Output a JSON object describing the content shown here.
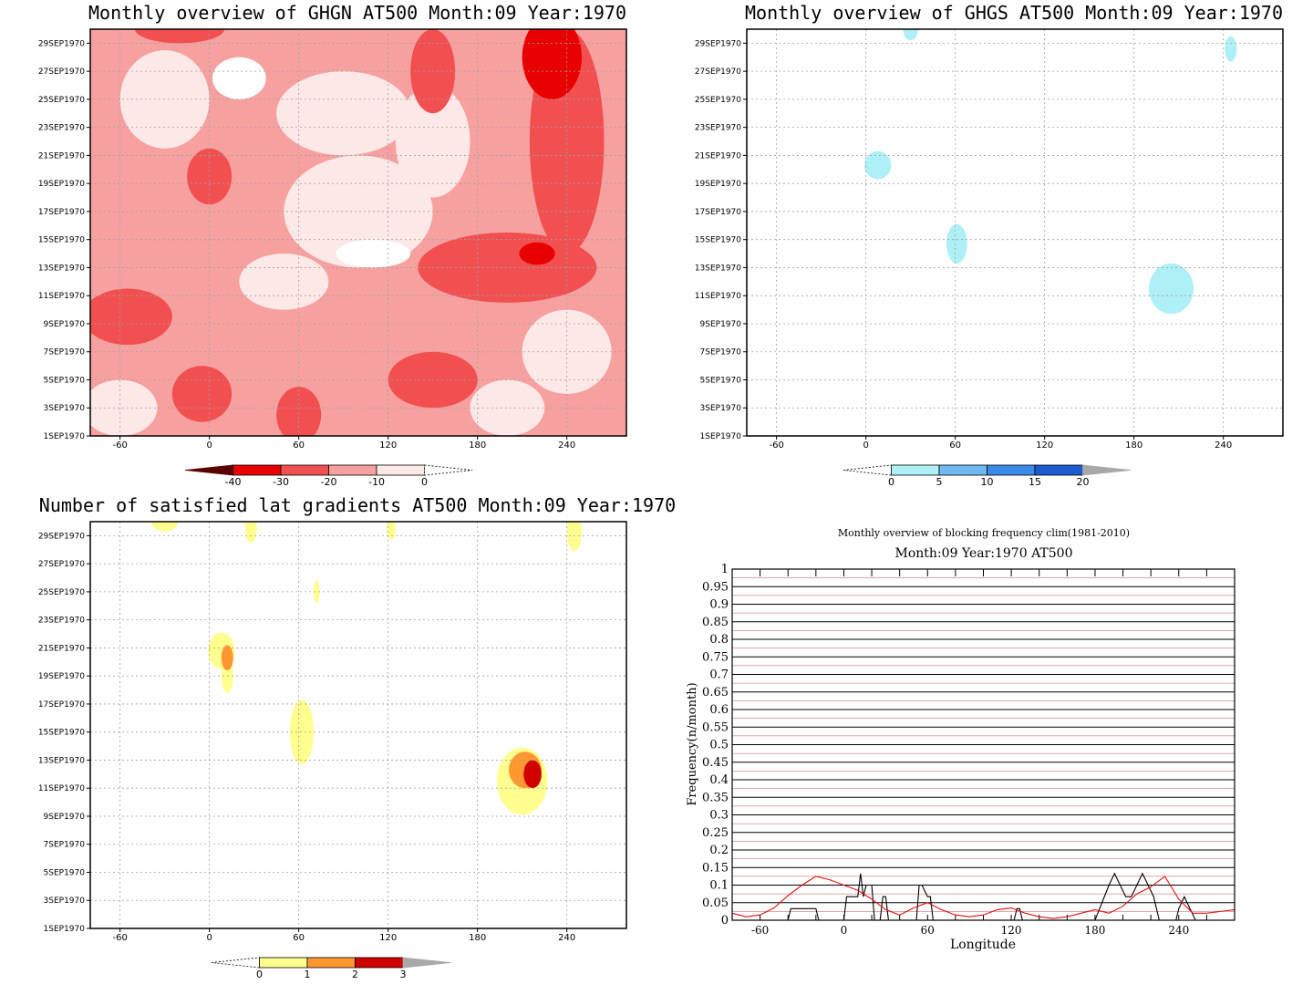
{
  "chart_data": [
    {
      "type": "heatmap",
      "title": "Monthly overview of GHGN AT500 Month:09 Year:1970",
      "x_ticks": [
        "-60",
        "0",
        "60",
        "120",
        "180",
        "240"
      ],
      "x_tick_values": [
        -60,
        0,
        60,
        120,
        180,
        240
      ],
      "xlim": [
        -80,
        280
      ],
      "y_ticks": [
        "1SEP1970",
        "3SEP1970",
        "5SEP1970",
        "7SEP1970",
        "9SEP1970",
        "11SEP1970",
        "13SEP1970",
        "15SEP1970",
        "17SEP1970",
        "19SEP1970",
        "21SEP1970",
        "23SEP1970",
        "25SEP1970",
        "27SEP1970",
        "29SEP1970"
      ],
      "y_tick_values": [
        1,
        3,
        5,
        7,
        9,
        11,
        13,
        15,
        17,
        19,
        21,
        23,
        25,
        27,
        29
      ],
      "ylim": [
        1,
        30
      ],
      "colorbar": {
        "labels": [
          "-40",
          "-30",
          "-20",
          "-10",
          "0"
        ],
        "colors": [
          "#5a0000",
          "#e80000",
          "#f25050",
          "#f7a0a0",
          "#fde8e8",
          "#ffffff"
        ]
      },
      "background_level": "#f7a0a0",
      "blobs": [
        {
          "lon": -30,
          "day": 25,
          "rx": 30,
          "ry": 3.5,
          "color": "#fde8e8"
        },
        {
          "lon": 20,
          "day": 26.5,
          "rx": 18,
          "ry": 1.5,
          "color": "#ffffff"
        },
        {
          "lon": 90,
          "day": 24,
          "rx": 45,
          "ry": 3,
          "color": "#fde8e8"
        },
        {
          "lon": 150,
          "day": 22,
          "rx": 25,
          "ry": 4,
          "color": "#fde8e8"
        },
        {
          "lon": 100,
          "day": 17,
          "rx": 50,
          "ry": 4,
          "color": "#fde8e8"
        },
        {
          "lon": 110,
          "day": 14,
          "rx": 25,
          "ry": 1,
          "color": "#ffffff"
        },
        {
          "lon": 0,
          "day": 19.5,
          "rx": 15,
          "ry": 2,
          "color": "#f25050"
        },
        {
          "lon": 240,
          "day": 22,
          "rx": 25,
          "ry": 8,
          "color": "#f25050"
        },
        {
          "lon": 200,
          "day": 13,
          "rx": 60,
          "ry": 2.5,
          "color": "#f25050"
        },
        {
          "lon": 220,
          "day": 14,
          "rx": 12,
          "ry": 0.8,
          "color": "#e80000"
        },
        {
          "lon": -55,
          "day": 9.5,
          "rx": 30,
          "ry": 2,
          "color": "#f25050"
        },
        {
          "lon": -5,
          "day": 4,
          "rx": 20,
          "ry": 2,
          "color": "#f25050"
        },
        {
          "lon": 60,
          "day": 2.5,
          "rx": 15,
          "ry": 2,
          "color": "#f25050"
        },
        {
          "lon": 150,
          "day": 5,
          "rx": 30,
          "ry": 2,
          "color": "#f25050"
        },
        {
          "lon": 240,
          "day": 7,
          "rx": 30,
          "ry": 3,
          "color": "#fde8e8"
        },
        {
          "lon": 200,
          "day": 3,
          "rx": 25,
          "ry": 2,
          "color": "#fde8e8"
        },
        {
          "lon": -60,
          "day": 3,
          "rx": 25,
          "ry": 2,
          "color": "#fde8e8"
        },
        {
          "lon": 50,
          "day": 12,
          "rx": 30,
          "ry": 2,
          "color": "#fde8e8"
        },
        {
          "lon": -20,
          "day": 30,
          "rx": 30,
          "ry": 1,
          "color": "#f25050"
        },
        {
          "lon": 150,
          "day": 27,
          "rx": 15,
          "ry": 3,
          "color": "#f25050"
        },
        {
          "lon": 230,
          "day": 28,
          "rx": 20,
          "ry": 3,
          "color": "#e80000"
        }
      ]
    },
    {
      "type": "heatmap",
      "title": "Monthly overview of GHGS AT500 Month:09 Year:1970",
      "x_ticks": [
        "-60",
        "0",
        "60",
        "120",
        "180",
        "240"
      ],
      "x_tick_values": [
        -60,
        0,
        60,
        120,
        180,
        240
      ],
      "xlim": [
        -80,
        280
      ],
      "y_ticks": [
        "1SEP1970",
        "3SEP1970",
        "5SEP1970",
        "7SEP1970",
        "9SEP1970",
        "11SEP1970",
        "13SEP1970",
        "15SEP1970",
        "17SEP1970",
        "19SEP1970",
        "21SEP1970",
        "23SEP1970",
        "25SEP1970",
        "27SEP1970",
        "29SEP1970"
      ],
      "y_tick_values": [
        1,
        3,
        5,
        7,
        9,
        11,
        13,
        15,
        17,
        19,
        21,
        23,
        25,
        27,
        29
      ],
      "ylim": [
        1,
        30
      ],
      "colorbar": {
        "labels": [
          "0",
          "5",
          "10",
          "15",
          "20"
        ],
        "colors": [
          "#ffffff",
          "#aef0f6",
          "#6fb8f0",
          "#3a8ae8",
          "#1c5cd0",
          "#a8a8a8"
        ]
      },
      "blobs": [
        {
          "lon": 8,
          "day": 20.3,
          "rx": 9,
          "ry": 1,
          "color": "#aef0f6"
        },
        {
          "lon": 61,
          "day": 14.7,
          "rx": 7,
          "ry": 1.4,
          "color": "#aef0f6"
        },
        {
          "lon": 205,
          "day": 11.5,
          "rx": 15,
          "ry": 1.8,
          "color": "#aef0f6"
        },
        {
          "lon": 245,
          "day": 28.6,
          "rx": 4,
          "ry": 0.9,
          "color": "#aef0f6"
        },
        {
          "lon": 30,
          "day": 30,
          "rx": 5,
          "ry": 0.8,
          "color": "#aef0f6"
        }
      ]
    },
    {
      "type": "heatmap",
      "title": "Number of satisfied lat gradients AT500 Month:09 Year:1970",
      "x_ticks": [
        "-60",
        "0",
        "60",
        "120",
        "180",
        "240"
      ],
      "x_tick_values": [
        -60,
        0,
        60,
        120,
        180,
        240
      ],
      "xlim": [
        -80,
        280
      ],
      "y_ticks": [
        "1SEP1970",
        "3SEP1970",
        "5SEP1970",
        "7SEP1970",
        "9SEP1970",
        "11SEP1970",
        "13SEP1970",
        "15SEP1970",
        "17SEP1970",
        "19SEP1970",
        "21SEP1970",
        "23SEP1970",
        "25SEP1970",
        "27SEP1970",
        "29SEP1970"
      ],
      "y_tick_values": [
        1,
        3,
        5,
        7,
        9,
        11,
        13,
        15,
        17,
        19,
        21,
        23,
        25,
        27,
        29
      ],
      "ylim": [
        1,
        30
      ],
      "colorbar": {
        "labels": [
          "0",
          "1",
          "2",
          "3"
        ],
        "colors": [
          "#ffffff",
          "#ffff90",
          "#ff9830",
          "#d00000",
          "#a8a8a8"
        ]
      },
      "blobs": [
        {
          "lon": 8,
          "day": 20.8,
          "rx": 9,
          "ry": 1.3,
          "color": "#ffff90"
        },
        {
          "lon": 12,
          "day": 19,
          "rx": 4,
          "ry": 1.2,
          "color": "#ffff90"
        },
        {
          "lon": 62,
          "day": 15,
          "rx": 8,
          "ry": 2.3,
          "color": "#ffff90"
        },
        {
          "lon": 210,
          "day": 11.5,
          "rx": 17,
          "ry": 2.4,
          "color": "#ffff90"
        },
        {
          "lon": 212,
          "day": 12.3,
          "rx": 11,
          "ry": 1.3,
          "color": "#ff9830"
        },
        {
          "lon": 12,
          "day": 20.3,
          "rx": 4,
          "ry": 0.9,
          "color": "#ff9830"
        },
        {
          "lon": 217,
          "day": 12,
          "rx": 6,
          "ry": 1,
          "color": "#d00000"
        },
        {
          "lon": -30,
          "day": 30,
          "rx": 9,
          "ry": 0.7,
          "color": "#ffff90"
        },
        {
          "lon": 28,
          "day": 29.5,
          "rx": 4,
          "ry": 1,
          "color": "#ffff90"
        },
        {
          "lon": 72,
          "day": 25,
          "rx": 2,
          "ry": 0.8,
          "color": "#ffff90"
        },
        {
          "lon": 122,
          "day": 29.5,
          "rx": 3,
          "ry": 0.8,
          "color": "#ffff90"
        },
        {
          "lon": 245,
          "day": 29.3,
          "rx": 5,
          "ry": 1.4,
          "color": "#ffff90"
        }
      ]
    },
    {
      "type": "line",
      "title": "Monthly overview of blocking frequency clim(1981-2010)",
      "subtitle": "Month:09 Year:1970  AT500",
      "xlabel": "Longitude",
      "ylabel": "Frequency(n/month)",
      "x_ticks": [
        "-60",
        "0",
        "60",
        "120",
        "180",
        "240"
      ],
      "x_tick_values": [
        -60,
        0,
        60,
        120,
        180,
        240
      ],
      "xlim": [
        -80,
        280
      ],
      "y_ticks": [
        "0",
        "0.05",
        "0.1",
        "0.15",
        "0.2",
        "0.25",
        "0.3",
        "0.35",
        "0.4",
        "0.45",
        "0.5",
        "0.55",
        "0.6",
        "0.65",
        "0.7",
        "0.75",
        "0.8",
        "0.85",
        "0.9",
        "0.95",
        "1"
      ],
      "ylim": [
        0,
        1
      ],
      "series": [
        {
          "color": "#000000",
          "x": [
            -80,
            -40,
            -38,
            -20,
            -18,
            0,
            2,
            10,
            12,
            14,
            16,
            20,
            22,
            26,
            28,
            30,
            32,
            52,
            54,
            56,
            60,
            62,
            64,
            122,
            124,
            126,
            128,
            176,
            180,
            190,
            194,
            198,
            202,
            206,
            210,
            214,
            218,
            222,
            226,
            230,
            234,
            238,
            240,
            244,
            248,
            252,
            256,
            280
          ],
          "y": [
            0,
            0,
            0.033,
            0.033,
            0,
            0,
            0.067,
            0.067,
            0.133,
            0.067,
            0.1,
            0.1,
            0,
            0,
            0.067,
            0.067,
            0,
            0,
            0.1,
            0.1,
            0.067,
            0.067,
            0,
            0,
            0.033,
            0.033,
            0,
            0,
            0,
            0.1,
            0.133,
            0.1,
            0.067,
            0.067,
            0.1,
            0.133,
            0.1,
            0.067,
            0,
            0,
            0,
            0,
            0.033,
            0.067,
            0.033,
            0,
            0,
            0
          ]
        },
        {
          "color": "#e01010",
          "x": [
            -80,
            -70,
            -60,
            -50,
            -40,
            -30,
            -20,
            -10,
            0,
            10,
            20,
            30,
            40,
            50,
            60,
            70,
            80,
            90,
            100,
            110,
            120,
            130,
            140,
            150,
            160,
            170,
            180,
            190,
            200,
            210,
            220,
            230,
            240,
            250,
            260,
            270,
            280
          ],
          "y": [
            0.02,
            0.01,
            0.015,
            0.035,
            0.07,
            0.1,
            0.125,
            0.115,
            0.1,
            0.085,
            0.06,
            0.03,
            0.015,
            0.035,
            0.05,
            0.03,
            0.015,
            0.01,
            0.015,
            0.03,
            0.035,
            0.02,
            0.01,
            0.005,
            0.01,
            0.02,
            0.03,
            0.02,
            0.04,
            0.075,
            0.095,
            0.125,
            0.06,
            0.02,
            0.02,
            0.025,
            0.03
          ]
        }
      ]
    }
  ]
}
